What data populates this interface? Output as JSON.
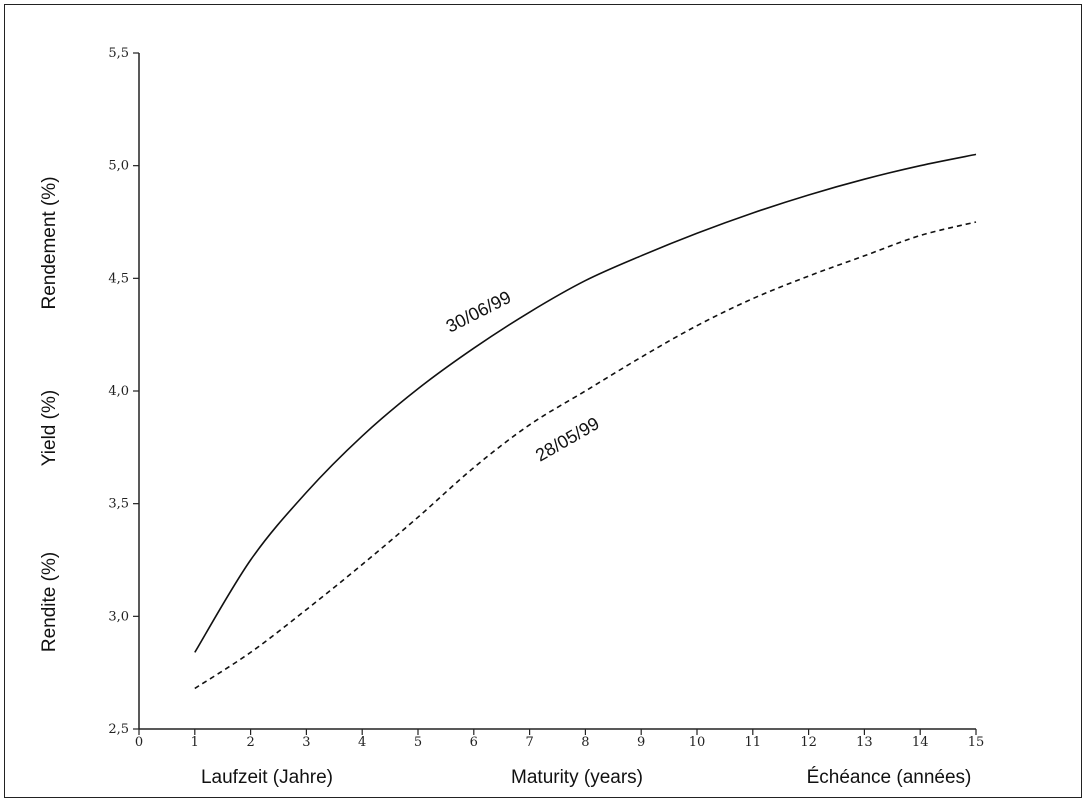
{
  "chart_data": {
    "type": "line",
    "x_ticks": [
      "0",
      "1",
      "2",
      "3",
      "4",
      "5",
      "6",
      "7",
      "8",
      "9",
      "10",
      "11",
      "12",
      "13",
      "14",
      "15"
    ],
    "y_ticks": [
      "2,5",
      "3,0",
      "3,5",
      "4,0",
      "4,5",
      "5,0",
      "5,5"
    ],
    "xlim": [
      0,
      15
    ],
    "ylim": [
      2.5,
      5.5
    ],
    "ylabels": [
      "Rendement (%)",
      "Yield (%)",
      "Rendite (%)"
    ],
    "xlabels": [
      "Laufzeit (Jahre)",
      "Maturity (years)",
      "Échéance (années)"
    ],
    "grid": false,
    "series": [
      {
        "name": "30/06/99",
        "style": "solid",
        "x": [
          1,
          2,
          3,
          4,
          5,
          6,
          7,
          8,
          9,
          10,
          11,
          12,
          13,
          14,
          15
        ],
        "values": [
          2.84,
          3.25,
          3.55,
          3.8,
          4.01,
          4.19,
          4.35,
          4.49,
          4.6,
          4.7,
          4.79,
          4.87,
          4.94,
          5.0,
          5.05
        ]
      },
      {
        "name": "28/05/99",
        "style": "dashed",
        "x": [
          1,
          2,
          3,
          4,
          5,
          6,
          7,
          8,
          9,
          10,
          11,
          12,
          13,
          14,
          15
        ],
        "values": [
          2.68,
          2.84,
          3.03,
          3.23,
          3.44,
          3.66,
          3.85,
          4.0,
          4.15,
          4.29,
          4.41,
          4.51,
          4.6,
          4.69,
          4.75
        ]
      }
    ],
    "annotations": [
      {
        "text": "30/06/99",
        "series": "30/06/99"
      },
      {
        "text": "28/05/99",
        "series": "28/05/99"
      }
    ]
  }
}
